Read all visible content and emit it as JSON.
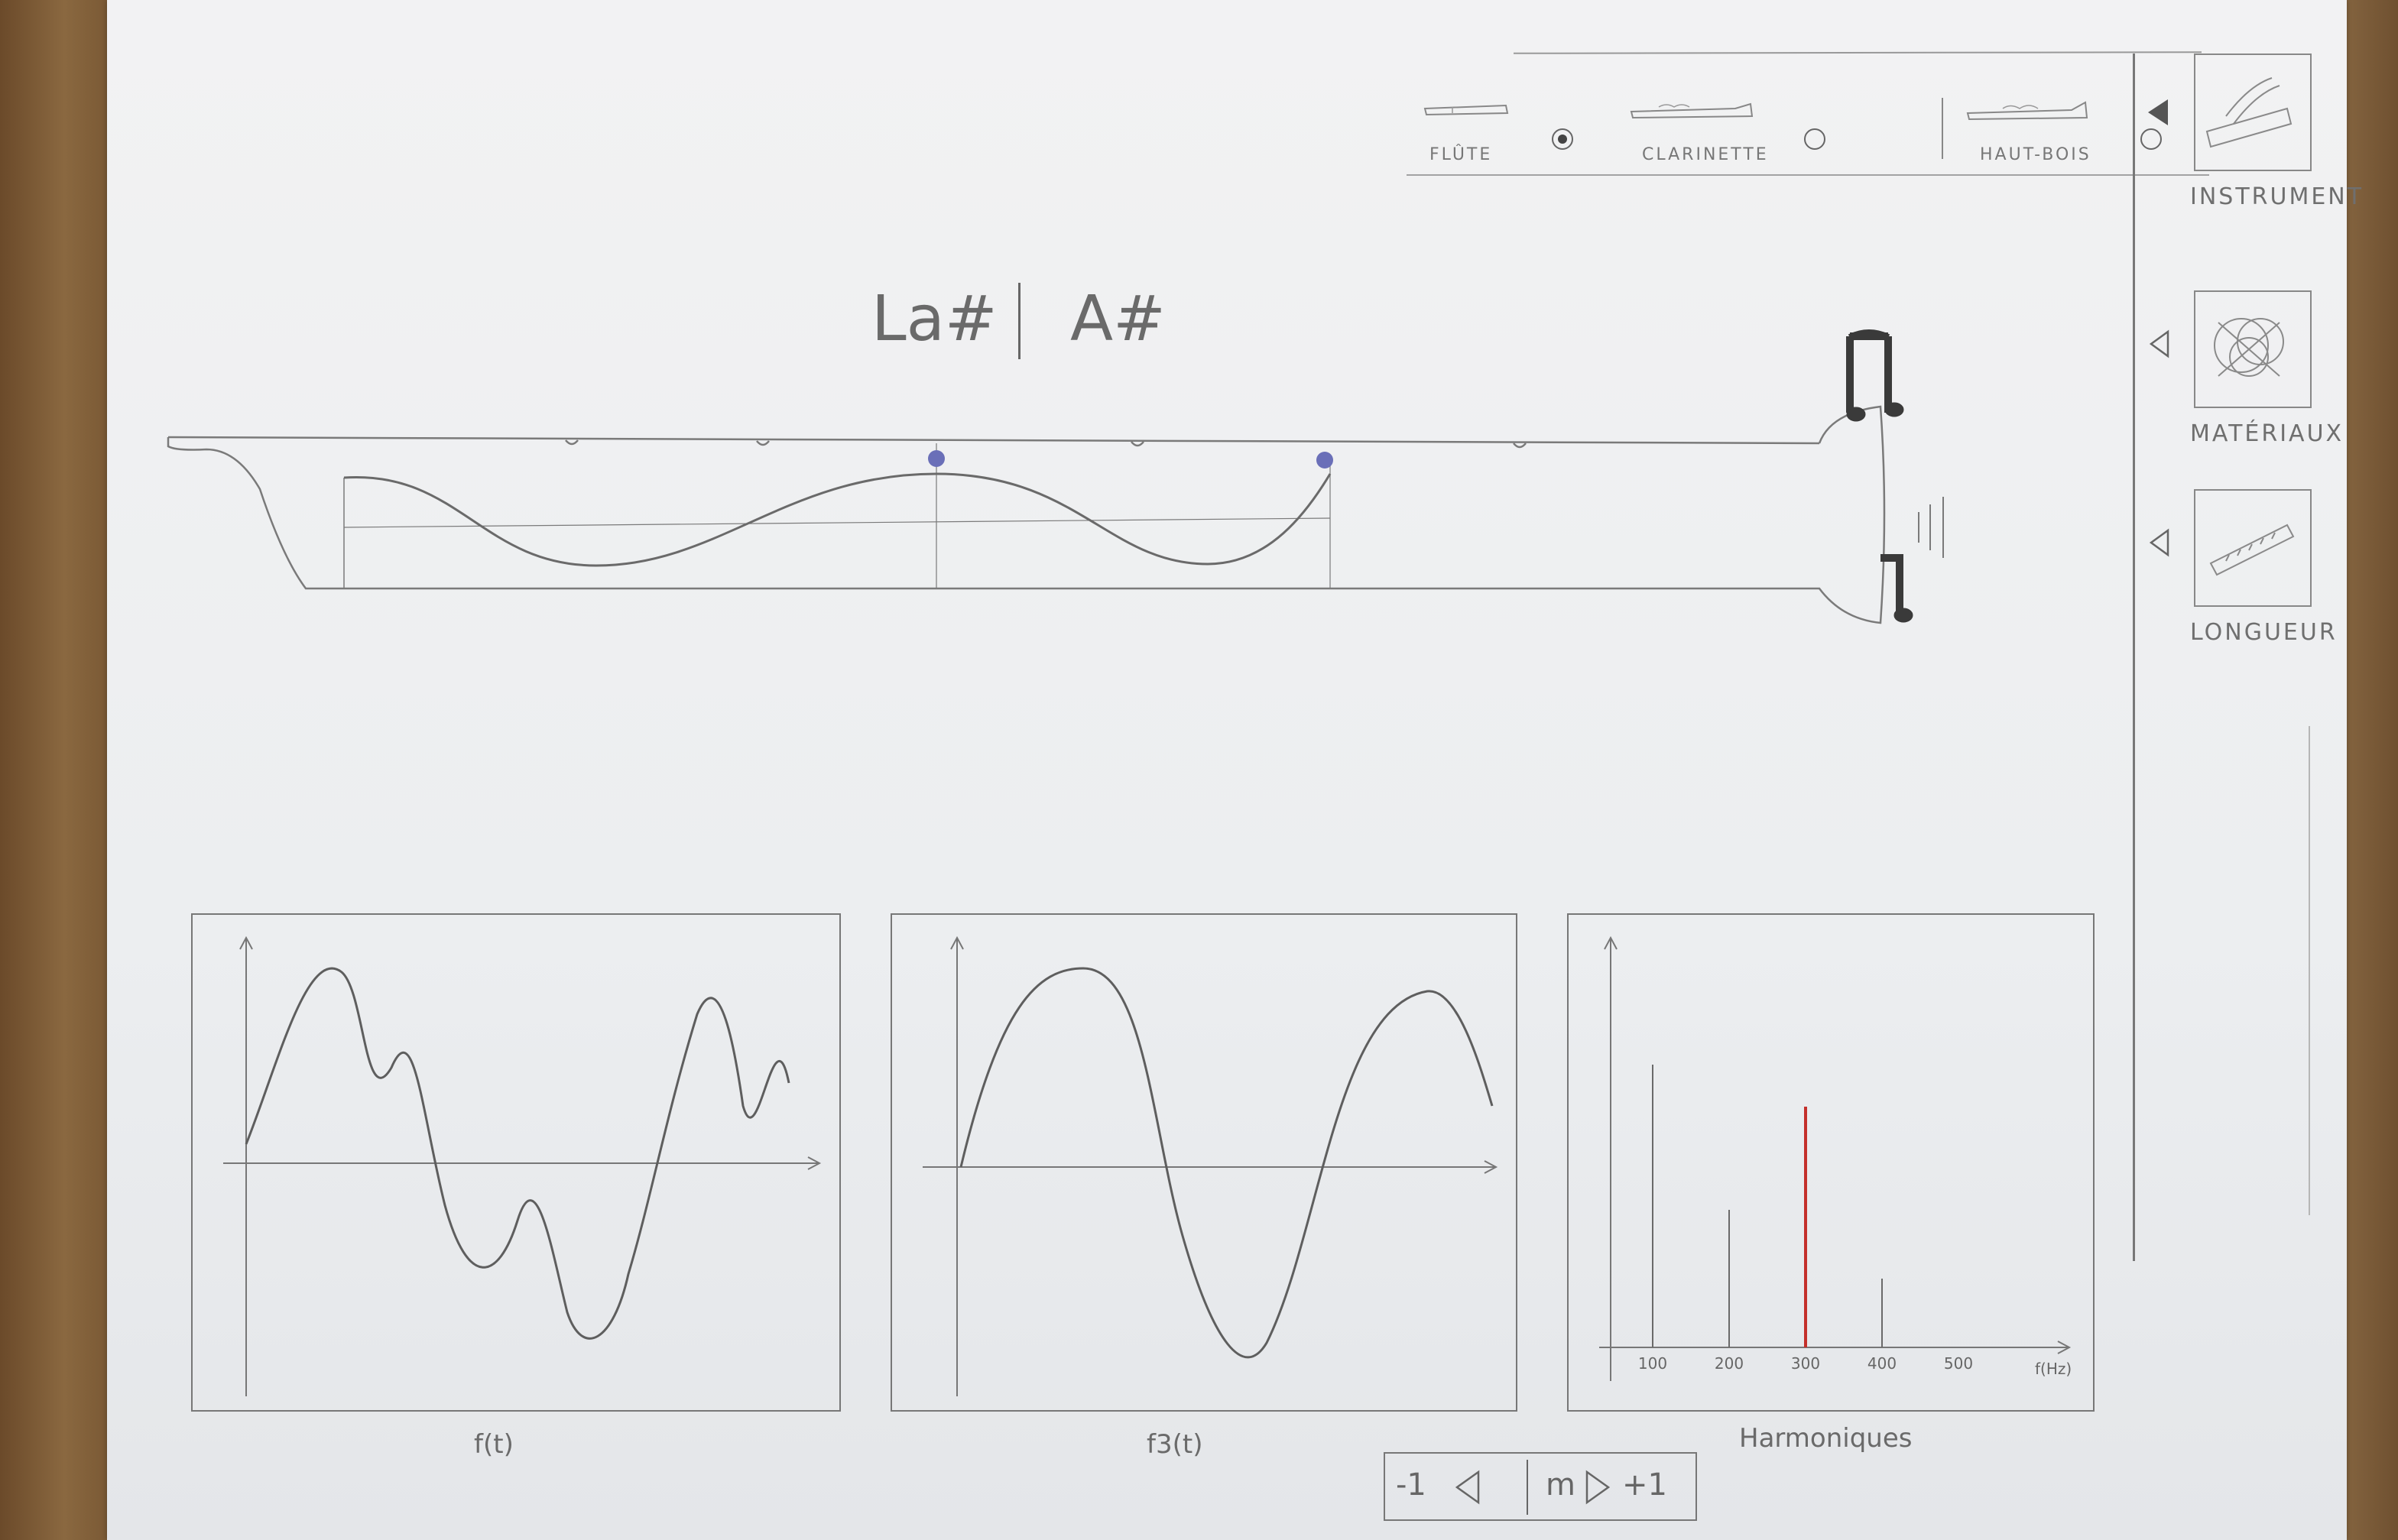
{
  "instrument_selector": {
    "options": [
      {
        "label": "FLÛTE",
        "selected": true
      },
      {
        "label": "CLARINETTE",
        "selected": false
      },
      {
        "label": "HAUT-BOIS",
        "selected": false
      }
    ]
  },
  "note": {
    "french": "La#",
    "english": "A#"
  },
  "sidebar": {
    "items": [
      {
        "label": "INSTRUMENT",
        "active": true,
        "icon": "instrument-icon"
      },
      {
        "label": "MATÉRIAUX",
        "active": false,
        "icon": "materials-icon"
      },
      {
        "label": "LONGUEUR",
        "active": false,
        "icon": "length-icon"
      }
    ]
  },
  "graphs": {
    "ft_caption": "f(t)",
    "f3_caption": "f3(t)",
    "harmonics_caption": "Harmoniques"
  },
  "chart_data": {
    "type": "bar",
    "title": "",
    "xlabel": "f(Hz)",
    "ylabel": "",
    "categories": [
      "100",
      "200",
      "300",
      "400",
      "500"
    ],
    "values": [
      0.74,
      0.36,
      0.63,
      0.18,
      0
    ],
    "highlighted": "300",
    "highlight_color": "#c4302b"
  },
  "harmonic_nav": {
    "minus": "-1",
    "current": "m",
    "plus": "+1"
  },
  "colors": {
    "pencil": "#6e6e6e",
    "node_dot": "#6a6fb8",
    "highlight": "#c4302b"
  }
}
